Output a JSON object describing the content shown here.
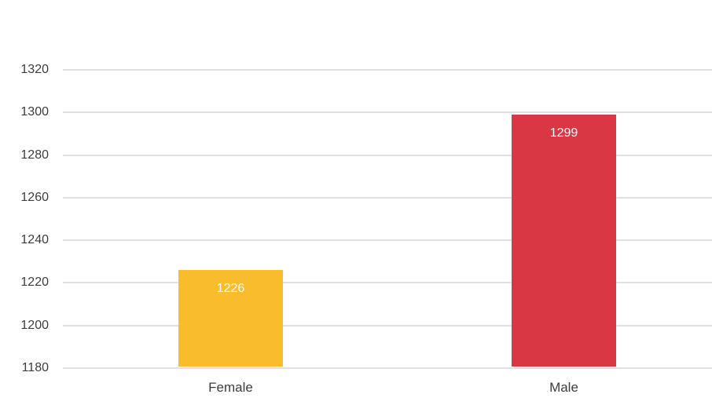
{
  "chart_data": {
    "type": "bar",
    "categories": [
      "Female",
      "Male"
    ],
    "values": [
      1226,
      1299
    ],
    "bar_colors": [
      "#F9BC2D",
      "#D93743"
    ],
    "value_label_color": "#FFFFFF",
    "yticks": [
      1320,
      1300,
      1280,
      1260,
      1240,
      1220,
      1200,
      1180
    ],
    "ylim": [
      1180,
      1320
    ],
    "grid": true,
    "gridline_color": "#E0E0E0",
    "axis_text_color": "#3C3C3C",
    "background_color": "#FFFFFF",
    "legend": "none"
  }
}
